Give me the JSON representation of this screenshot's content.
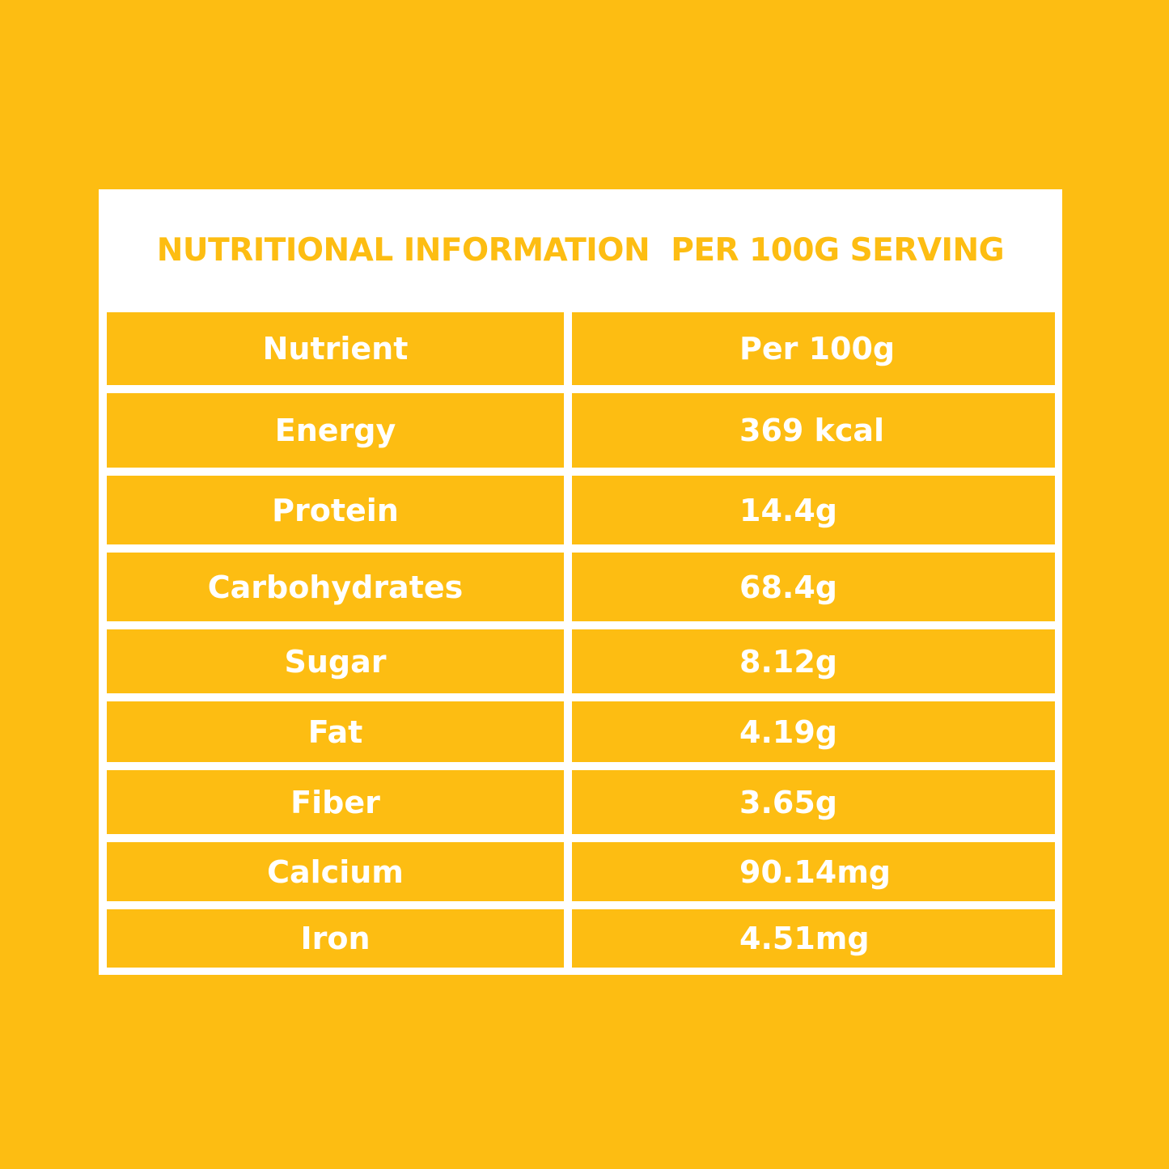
{
  "title": "NUTRITIONAL INFORMATION  PER 100G SERVING",
  "table": {
    "headers": [
      "Nutrient",
      "Per 100g"
    ],
    "rows": [
      [
        "Energy",
        "369 kcal"
      ],
      [
        "Protein",
        "14.4g"
      ],
      [
        "Carbohydrates",
        "68.4g"
      ],
      [
        "Sugar",
        "8.12g"
      ],
      [
        "Fat",
        "4.19g"
      ],
      [
        "Fiber",
        "3.65g"
      ],
      [
        "Calcium",
        "90.14mg"
      ],
      [
        "Iron",
        "4.51mg"
      ]
    ]
  },
  "colors": {
    "background": "#FDBD12",
    "card": "#FFFFFF",
    "text_on_yellow": "#FFFFFF",
    "title_text": "#FDBD12"
  }
}
